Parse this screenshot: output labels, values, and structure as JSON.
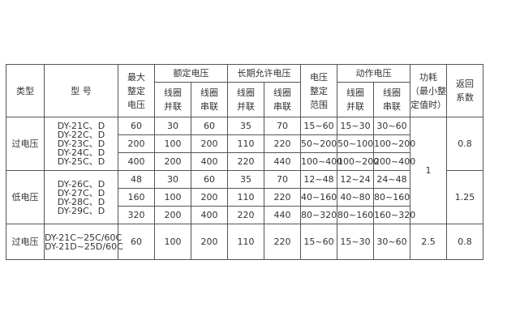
{
  "headers": {
    "type": "类型",
    "model": "型 号",
    "max_setting": [
      "最大",
      "整定",
      "电压"
    ],
    "rated": "额定电压",
    "long_term": "长期允许电压",
    "range": [
      "电压",
      "整定",
      "范围"
    ],
    "action": "动作电压",
    "parallel": [
      "线圈",
      "并联"
    ],
    "series": [
      "线圈",
      "串联"
    ],
    "power": [
      "功耗",
      "（最小整",
      "定值时）"
    ],
    "return": [
      "返回",
      "系数"
    ]
  },
  "groups": [
    {
      "type": "过电压",
      "models": [
        "DY-21C、D",
        "DY-22C、D",
        "DY-23C、D",
        "DY-24C、D",
        "DY-25C、D"
      ],
      "rows": [
        [
          "60",
          "30",
          "60",
          "35",
          "70",
          "15~60",
          "15~30",
          "30~60"
        ],
        [
          "200",
          "100",
          "200",
          "110",
          "220",
          "50~200",
          "50~100",
          "100~200"
        ],
        [
          "400",
          "200",
          "400",
          "220",
          "440",
          "100~400",
          "100~200",
          "200~400"
        ]
      ],
      "return": "0.8"
    },
    {
      "type": "低电压",
      "models": [
        "DY-26C、D",
        "DY-27C、D",
        "DY-28C、D",
        "DY-29C、D"
      ],
      "rows": [
        [
          "48",
          "30",
          "60",
          "35",
          "70",
          "12~48",
          "12~24",
          "24~48"
        ],
        [
          "160",
          "100",
          "200",
          "110",
          "220",
          "40~160",
          "40~80",
          "80~160"
        ],
        [
          "320",
          "200",
          "400",
          "220",
          "440",
          "80~320",
          "80~160",
          "160~320"
        ]
      ],
      "return": "1.25"
    },
    {
      "type": "过电压",
      "models": [
        "DY-21C~25C/60C",
        "DY-21D~25D/60C"
      ],
      "rows": [
        [
          "60",
          "100",
          "200",
          "110",
          "220",
          "15~60",
          "15~30",
          "30~60"
        ]
      ],
      "power": "2.5",
      "return": "0.8"
    }
  ],
  "power_shared": "1"
}
